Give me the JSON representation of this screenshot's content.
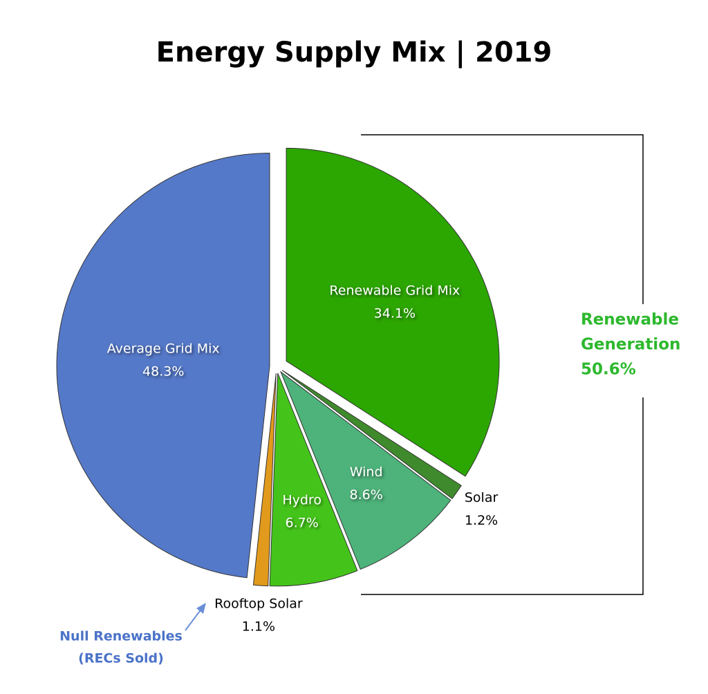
{
  "chart_data": {
    "type": "pie",
    "title": "Energy Supply Mix | 2019",
    "categories": [
      "Renewable Grid Mix",
      "Solar",
      "Wind",
      "Hydro",
      "Rooftop Solar",
      "Average Grid Mix"
    ],
    "values": [
      34.1,
      1.2,
      8.6,
      6.7,
      1.1,
      48.3
    ],
    "value_labels": [
      "34.1%",
      "1.2%",
      "8.6%",
      "6.7%",
      "1.1%",
      "48.3%"
    ],
    "colors": [
      "#2ca600",
      "#3f8a2c",
      "#4db37a",
      "#44c41a",
      "#e29a1c",
      "#5579c9"
    ],
    "bracket_annotation": [
      "Renewable",
      "Generation",
      "50.6%"
    ],
    "arrow_annotation": [
      "Null Renewables",
      "(RECs Sold)"
    ]
  }
}
